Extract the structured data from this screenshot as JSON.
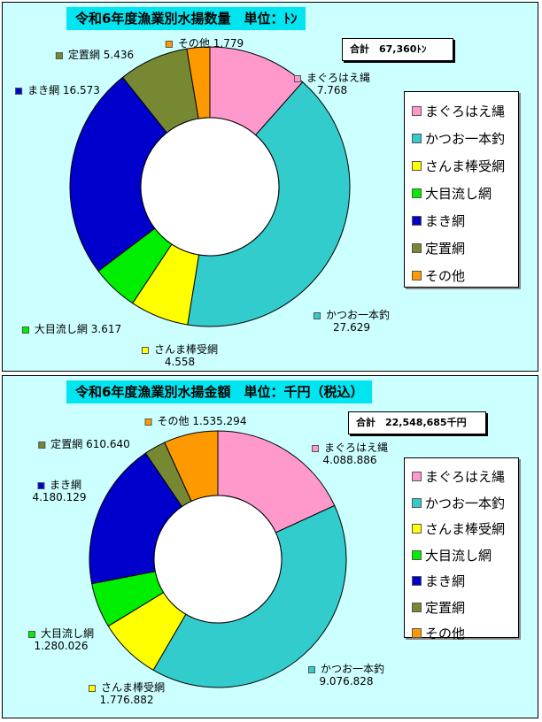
{
  "chart_data": [
    {
      "type": "pie",
      "title": "令和6年度漁業別水揚数量　単位：ﾄﾝ",
      "total_label": "合計　67,360ﾄﾝ",
      "categories": [
        "まぐろはえ縄",
        "かつお一本釣",
        "さんま棒受網",
        "大目流し網",
        "まき網",
        "定置網",
        "その他"
      ],
      "values": [
        7768,
        27629,
        4558,
        3617,
        16573,
        5436,
        1779
      ],
      "value_labels": [
        "7.768",
        "27.629",
        "4.558",
        "3.617",
        "16.573",
        "5.436",
        "1.779"
      ],
      "colors": [
        "#ff99cc",
        "#33cccc",
        "#ffff00",
        "#00ee00",
        "#0000cc",
        "#778833",
        "#ff9900"
      ],
      "legend": "right"
    },
    {
      "type": "pie",
      "title": "令和6年度漁業別水揚金額　単位：千円（税込）",
      "total_label": "合計　22,548,685千円",
      "categories": [
        "まぐろはえ縄",
        "かつお一本釣",
        "さんま棒受網",
        "大目流し網",
        "まき網",
        "定置網",
        "その他"
      ],
      "values": [
        4088886,
        9076828,
        1776882,
        1280026,
        4180129,
        610640,
        1535294
      ],
      "value_labels": [
        "4.088.886",
        "9.076.828",
        "1.776.882",
        "1.280.026",
        "4.180.129",
        "610.640",
        "1.535.294"
      ],
      "colors": [
        "#ff99cc",
        "#33cccc",
        "#ffff00",
        "#00ee00",
        "#0000cc",
        "#778833",
        "#ff9900"
      ],
      "legend": "right"
    }
  ]
}
